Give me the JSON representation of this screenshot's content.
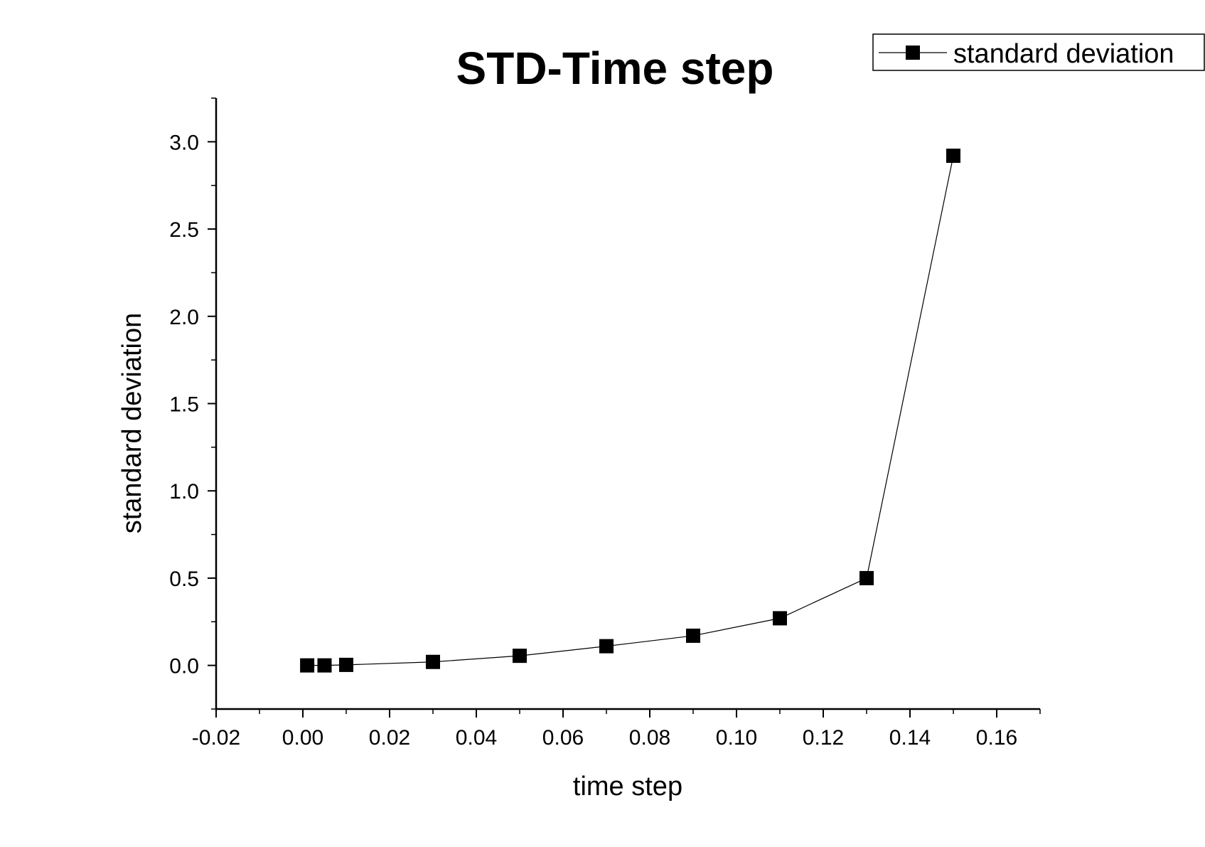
{
  "chart_data": {
    "type": "line",
    "title": "STD-Time step",
    "xlabel": "time step",
    "ylabel": "standard deviation",
    "xlim": [
      -0.02,
      0.17
    ],
    "ylim": [
      -0.25,
      3.25
    ],
    "x_ticks": [
      -0.02,
      0.0,
      0.02,
      0.04,
      0.06,
      0.08,
      0.1,
      0.12,
      0.14,
      0.16
    ],
    "x_tick_labels": [
      "-0.02",
      "0.00",
      "0.02",
      "0.04",
      "0.06",
      "0.08",
      "0.10",
      "0.12",
      "0.14",
      "0.16"
    ],
    "y_ticks": [
      0.0,
      0.5,
      1.0,
      1.5,
      2.0,
      2.5,
      3.0
    ],
    "y_tick_labels": [
      "0.0",
      "0.5",
      "1.0",
      "1.5",
      "2.0",
      "2.5",
      "3.0"
    ],
    "grid": false,
    "legend_position": "top-right",
    "series": [
      {
        "name": "standard deviation",
        "marker": "square",
        "color": "#000000",
        "x": [
          0.001,
          0.005,
          0.01,
          0.03,
          0.05,
          0.07,
          0.09,
          0.11,
          0.13,
          0.15
        ],
        "y": [
          0.0,
          0.0,
          0.003,
          0.02,
          0.055,
          0.11,
          0.17,
          0.27,
          0.5,
          2.92
        ]
      }
    ]
  }
}
